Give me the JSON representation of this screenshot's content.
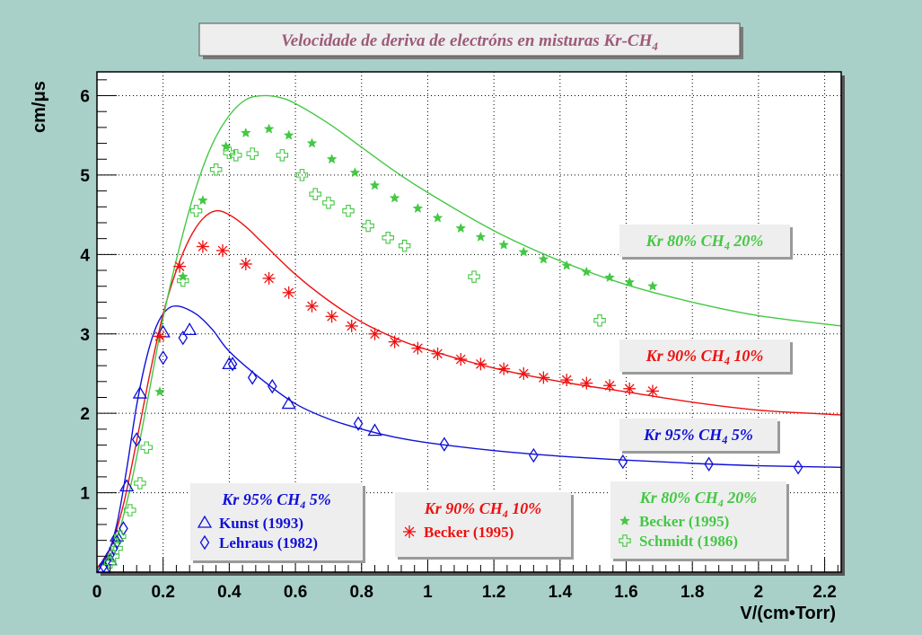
{
  "chart_data": {
    "type": "scatter",
    "title": "Velocidade de deriva de electróns en misturas Kr-CH4",
    "title_parts": {
      "main": "Velocidade de deriva de electróns en misturas Kr-CH",
      "sub": "4"
    },
    "xlabel": "V/(cm•Torr)",
    "ylabel": "cm/μs",
    "xlim": [
      0,
      2.25
    ],
    "ylim": [
      0,
      6.3
    ],
    "xticks": [
      "0",
      "0.2",
      "0.4",
      "0.6",
      "0.8",
      "1",
      "1.2",
      "1.4",
      "1.6",
      "1.8",
      "2",
      "2.2"
    ],
    "yticks": [
      "1",
      "2",
      "3",
      "4",
      "5",
      "6"
    ],
    "grid": true,
    "colors": {
      "background": "#a8d0c8",
      "plot": "#ffffff",
      "blue": "#1010d8",
      "red": "#ee1010",
      "green": "#44c844"
    },
    "curves": [
      {
        "name": "Kr 95% CH4 5%",
        "color": "blue",
        "points": [
          [
            0.0,
            0.05
          ],
          [
            0.03,
            0.2
          ],
          [
            0.06,
            0.6
          ],
          [
            0.09,
            1.3
          ],
          [
            0.12,
            2.1
          ],
          [
            0.15,
            2.7
          ],
          [
            0.18,
            3.1
          ],
          [
            0.21,
            3.3
          ],
          [
            0.245,
            3.35
          ],
          [
            0.3,
            3.25
          ],
          [
            0.35,
            3.05
          ],
          [
            0.4,
            2.78
          ],
          [
            0.5,
            2.42
          ],
          [
            0.6,
            2.12
          ],
          [
            0.7,
            1.93
          ],
          [
            0.8,
            1.8
          ],
          [
            0.9,
            1.7
          ],
          [
            1.0,
            1.63
          ],
          [
            1.2,
            1.53
          ],
          [
            1.4,
            1.46
          ],
          [
            1.6,
            1.41
          ],
          [
            1.8,
            1.37
          ],
          [
            2.0,
            1.34
          ],
          [
            2.25,
            1.32
          ]
        ]
      },
      {
        "name": "Kr 90% CH4 10%",
        "color": "red",
        "points": [
          [
            0.0,
            0.05
          ],
          [
            0.04,
            0.3
          ],
          [
            0.08,
            0.85
          ],
          [
            0.12,
            1.65
          ],
          [
            0.16,
            2.5
          ],
          [
            0.2,
            3.25
          ],
          [
            0.24,
            3.8
          ],
          [
            0.28,
            4.2
          ],
          [
            0.32,
            4.45
          ],
          [
            0.36,
            4.55
          ],
          [
            0.4,
            4.5
          ],
          [
            0.45,
            4.35
          ],
          [
            0.5,
            4.15
          ],
          [
            0.6,
            3.75
          ],
          [
            0.7,
            3.42
          ],
          [
            0.8,
            3.15
          ],
          [
            0.9,
            2.95
          ],
          [
            1.0,
            2.8
          ],
          [
            1.2,
            2.57
          ],
          [
            1.4,
            2.4
          ],
          [
            1.6,
            2.27
          ],
          [
            1.8,
            2.14
          ],
          [
            2.0,
            2.04
          ],
          [
            2.25,
            1.98
          ]
        ]
      },
      {
        "name": "Kr 80% CH4 20%",
        "color": "green",
        "points": [
          [
            0.0,
            0.03
          ],
          [
            0.05,
            0.3
          ],
          [
            0.1,
            1.05
          ],
          [
            0.15,
            2.1
          ],
          [
            0.2,
            3.2
          ],
          [
            0.25,
            4.1
          ],
          [
            0.3,
            4.85
          ],
          [
            0.35,
            5.4
          ],
          [
            0.4,
            5.75
          ],
          [
            0.45,
            5.95
          ],
          [
            0.5,
            6.0
          ],
          [
            0.55,
            5.98
          ],
          [
            0.6,
            5.9
          ],
          [
            0.7,
            5.65
          ],
          [
            0.8,
            5.35
          ],
          [
            0.9,
            5.05
          ],
          [
            1.0,
            4.78
          ],
          [
            1.2,
            4.3
          ],
          [
            1.4,
            3.92
          ],
          [
            1.6,
            3.62
          ],
          [
            1.8,
            3.4
          ],
          [
            2.0,
            3.23
          ],
          [
            2.25,
            3.1
          ]
        ]
      }
    ],
    "series": [
      {
        "name": "Kunst (1993)",
        "group": "Kr 95% CH4 5%",
        "color": "blue",
        "marker": "triangle",
        "points": [
          [
            0.02,
            0.05
          ],
          [
            0.04,
            0.15
          ],
          [
            0.06,
            0.45
          ],
          [
            0.09,
            1.08
          ],
          [
            0.13,
            2.25
          ],
          [
            0.2,
            3.02
          ],
          [
            0.28,
            3.05
          ],
          [
            0.4,
            2.62
          ],
          [
            0.58,
            2.12
          ],
          [
            0.84,
            1.78
          ]
        ]
      },
      {
        "name": "Lehraus (1982)",
        "group": "Kr 95% CH4 5%",
        "color": "blue",
        "marker": "diamond",
        "points": [
          [
            0.02,
            0.08
          ],
          [
            0.03,
            0.15
          ],
          [
            0.04,
            0.22
          ],
          [
            0.05,
            0.3
          ],
          [
            0.06,
            0.38
          ],
          [
            0.08,
            0.55
          ],
          [
            0.12,
            1.67
          ],
          [
            0.2,
            2.7
          ],
          [
            0.26,
            2.95
          ],
          [
            0.41,
            2.62
          ],
          [
            0.47,
            2.45
          ],
          [
            0.53,
            2.34
          ],
          [
            0.79,
            1.87
          ],
          [
            1.05,
            1.61
          ],
          [
            1.32,
            1.47
          ],
          [
            1.59,
            1.39
          ],
          [
            1.85,
            1.36
          ],
          [
            2.12,
            1.32
          ]
        ]
      },
      {
        "name": "Becker (1995)",
        "group": "Kr 90% CH4 10%",
        "color": "red",
        "marker": "asterisk",
        "points": [
          [
            0.19,
            2.97
          ],
          [
            0.25,
            3.85
          ],
          [
            0.32,
            4.1
          ],
          [
            0.38,
            4.05
          ],
          [
            0.45,
            3.88
          ],
          [
            0.52,
            3.7
          ],
          [
            0.58,
            3.52
          ],
          [
            0.65,
            3.35
          ],
          [
            0.71,
            3.22
          ],
          [
            0.77,
            3.1
          ],
          [
            0.84,
            3.0
          ],
          [
            0.9,
            2.9
          ],
          [
            0.97,
            2.82
          ],
          [
            1.03,
            2.75
          ],
          [
            1.1,
            2.68
          ],
          [
            1.16,
            2.62
          ],
          [
            1.23,
            2.56
          ],
          [
            1.29,
            2.5
          ],
          [
            1.35,
            2.45
          ],
          [
            1.42,
            2.42
          ],
          [
            1.48,
            2.38
          ],
          [
            1.55,
            2.35
          ],
          [
            1.61,
            2.31
          ],
          [
            1.68,
            2.28
          ]
        ]
      },
      {
        "name": "Becker (1995)",
        "group": "Kr 80% CH4 20%",
        "color": "green",
        "marker": "star",
        "points": [
          [
            0.19,
            2.27
          ],
          [
            0.26,
            3.72
          ],
          [
            0.32,
            4.68
          ],
          [
            0.39,
            5.36
          ],
          [
            0.45,
            5.53
          ],
          [
            0.52,
            5.58
          ],
          [
            0.58,
            5.5
          ],
          [
            0.65,
            5.4
          ],
          [
            0.71,
            5.2
          ],
          [
            0.78,
            5.03
          ],
          [
            0.84,
            4.87
          ],
          [
            0.9,
            4.71
          ],
          [
            0.97,
            4.58
          ],
          [
            1.03,
            4.46
          ],
          [
            1.1,
            4.33
          ],
          [
            1.16,
            4.22
          ],
          [
            1.23,
            4.12
          ],
          [
            1.29,
            4.03
          ],
          [
            1.35,
            3.94
          ],
          [
            1.42,
            3.86
          ],
          [
            1.48,
            3.78
          ],
          [
            1.55,
            3.71
          ],
          [
            1.61,
            3.65
          ],
          [
            1.68,
            3.6
          ]
        ]
      },
      {
        "name": "Schmidt (1986)",
        "group": "Kr 80% CH4 20%",
        "color": "green",
        "marker": "cross",
        "points": [
          [
            0.04,
            0.12
          ],
          [
            0.05,
            0.2
          ],
          [
            0.06,
            0.3
          ],
          [
            0.07,
            0.45
          ],
          [
            0.1,
            0.78
          ],
          [
            0.13,
            1.12
          ],
          [
            0.15,
            1.57
          ],
          [
            0.26,
            3.67
          ],
          [
            0.3,
            4.55
          ],
          [
            0.36,
            5.07
          ],
          [
            0.4,
            5.28
          ],
          [
            0.42,
            5.25
          ],
          [
            0.47,
            5.27
          ],
          [
            0.56,
            5.25
          ],
          [
            0.62,
            5.0
          ],
          [
            0.66,
            4.76
          ],
          [
            0.7,
            4.65
          ],
          [
            0.76,
            4.55
          ],
          [
            0.82,
            4.36
          ],
          [
            0.88,
            4.21
          ],
          [
            0.93,
            4.11
          ],
          [
            1.14,
            3.72
          ],
          [
            1.52,
            3.17
          ]
        ]
      }
    ],
    "curve_labels": [
      {
        "main": "Kr 80% CH",
        "sub": "4",
        "rest": " 20%",
        "color": "green"
      },
      {
        "main": "Kr 90% CH",
        "sub": "4",
        "rest": " 10%",
        "color": "red"
      },
      {
        "main": "Kr 95% CH",
        "sub": "4",
        "rest": " 5%",
        "color": "blue"
      }
    ],
    "legends": [
      {
        "header_main": "Kr 95% CH",
        "header_sub": "4",
        "header_rest": " 5%",
        "color": "blue",
        "entries": [
          {
            "label": "Kunst (1993)",
            "marker": "triangle"
          },
          {
            "label": "Lehraus (1982)",
            "marker": "diamond"
          }
        ]
      },
      {
        "header_main": "Kr 90% CH",
        "header_sub": "4",
        "header_rest": " 10%",
        "color": "red",
        "entries": [
          {
            "label": "Becker (1995)",
            "marker": "asterisk"
          }
        ]
      },
      {
        "header_main": "Kr 80% CH",
        "header_sub": "4",
        "header_rest": " 20%",
        "color": "green",
        "entries": [
          {
            "label": "Becker (1995)",
            "marker": "star"
          },
          {
            "label": "Schmidt (1986)",
            "marker": "cross"
          }
        ]
      }
    ]
  }
}
